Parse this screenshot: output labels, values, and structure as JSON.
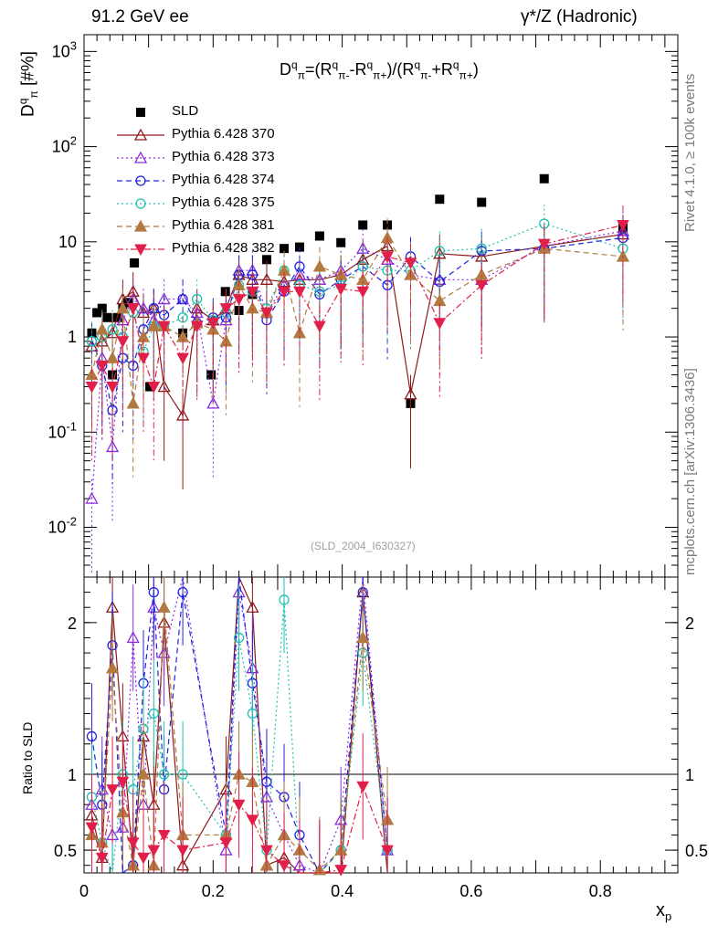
{
  "header": {
    "energy_label": "91.2 GeV ee",
    "process_label": "γ*/Z (Hadronic)",
    "side_label_top": "Rivet 4.1.0, ≥ 100k events",
    "side_label_bottom": "mcplots.cern.ch [arXiv:1306.3436]",
    "watermark": "(SLD_2004_I630327)"
  },
  "chart_data": [
    {
      "type": "scatter",
      "panel": "main",
      "title": "D^q_π = (R^q_π- − R^q_π+)/(R^q_π- + R^q_π+)",
      "ylabel": "D^q_π [#%]",
      "xlabel": "x_p",
      "yscale": "log",
      "ylim": [
        0.003,
        1500
      ],
      "xlim": [
        0,
        0.92
      ],
      "x_ticks": [
        "0",
        "0.2",
        "0.4",
        "0.6",
        "0.8"
      ],
      "y_ticks": [
        "10^-2",
        "10^-1",
        "1",
        "10",
        "10^2",
        "10^3"
      ],
      "legend_position": "top-left",
      "series": [
        {
          "name": "SLD",
          "color": "#000000",
          "marker": "square",
          "line": "none",
          "x": [
            0.012,
            0.02,
            0.028,
            0.036,
            0.044,
            0.052,
            0.06,
            0.068,
            0.078,
            0.102,
            0.153,
            0.197,
            0.219,
            0.24,
            0.261,
            0.283,
            0.31,
            0.334,
            0.365,
            0.398,
            0.432,
            0.47,
            0.506,
            0.551,
            0.616,
            0.713,
            0.835
          ],
          "values": [
            1.1,
            1.8,
            2.0,
            1.6,
            0.4,
            1.6,
            2.0,
            2.3,
            6.0,
            0.3,
            1.1,
            0.4,
            3.0,
            1.9,
            2.8,
            6.5,
            8.5,
            8.8,
            11.5,
            9.8,
            15.0,
            15.0,
            0.2,
            28.0,
            26.0,
            46.0,
            14.0
          ]
        },
        {
          "name": "Pythia 6.428 370",
          "color": "#8b1a1a",
          "marker": "triangle-open",
          "line": "solid",
          "x": [
            0.012,
            0.028,
            0.044,
            0.06,
            0.076,
            0.092,
            0.108,
            0.124,
            0.153,
            0.175,
            0.2,
            0.22,
            0.24,
            0.261,
            0.283,
            0.31,
            0.334,
            0.365,
            0.398,
            0.432,
            0.47,
            0.506,
            0.551,
            0.616,
            0.713,
            0.835
          ],
          "values": [
            0.8,
            0.9,
            1.1,
            2.5,
            3.0,
            1.8,
            2.0,
            0.3,
            0.15,
            2.0,
            1.5,
            2.0,
            4.5,
            4.0,
            4.0,
            3.8,
            4.0,
            4.0,
            4.5,
            6.5,
            9.0,
            0.25,
            7.5,
            7.0,
            9.0,
            12.0
          ]
        },
        {
          "name": "Pythia 6.428 373",
          "color": "#8a2be2",
          "marker": "triangle-open",
          "line": "dotted",
          "x": [
            0.012,
            0.028,
            0.044,
            0.06,
            0.076,
            0.092,
            0.108,
            0.124,
            0.153,
            0.175,
            0.2,
            0.22,
            0.24,
            0.261,
            0.283,
            0.31,
            0.334,
            0.365,
            0.398,
            0.432,
            0.47,
            0.506,
            0.551,
            0.616,
            0.713,
            0.835
          ],
          "values": [
            0.02,
            0.6,
            0.07,
            1.5,
            2.5,
            2.0,
            1.5,
            2.5,
            2.5,
            1.8,
            0.2,
            1.5,
            5.0,
            5.0,
            1.8,
            3.5,
            4.5,
            4.0,
            5.0,
            8.5,
            6.5,
            4.5,
            4.0,
            4.0,
            9.0,
            13.0
          ]
        },
        {
          "name": "Pythia 6.428 374",
          "color": "#2222dd",
          "marker": "circle-open",
          "line": "dashed",
          "x": [
            0.012,
            0.028,
            0.044,
            0.06,
            0.076,
            0.092,
            0.108,
            0.124,
            0.153,
            0.175,
            0.2,
            0.22,
            0.24,
            0.261,
            0.283,
            0.31,
            0.334,
            0.365,
            0.398,
            0.432,
            0.47,
            0.506,
            0.551,
            0.616,
            0.713,
            0.835
          ],
          "values": [
            0.9,
            0.5,
            0.17,
            0.6,
            0.5,
            1.2,
            2.0,
            1.7,
            2.5,
            1.4,
            1.6,
            1.6,
            4.5,
            4.5,
            1.5,
            3.0,
            5.5,
            2.8,
            4.0,
            5.5,
            3.5,
            7.0,
            3.8,
            8.0,
            8.5,
            11.0
          ]
        },
        {
          "name": "Pythia 6.428 375",
          "color": "#20c0b0",
          "marker": "circle-open",
          "line": "dotted",
          "x": [
            0.012,
            0.028,
            0.044,
            0.06,
            0.076,
            0.092,
            0.108,
            0.124,
            0.153,
            0.175,
            0.2,
            0.22,
            0.24,
            0.261,
            0.283,
            0.31,
            0.334,
            0.365,
            0.398,
            0.432,
            0.47,
            0.506,
            0.551,
            0.616,
            0.713,
            0.835
          ],
          "values": [
            0.9,
            1.0,
            1.2,
            1.0,
            1.8,
            0.7,
            1.3,
            1.3,
            1.6,
            2.5,
            1.5,
            1.8,
            3.5,
            3.0,
            2.0,
            5.0,
            3.5,
            3.0,
            3.5,
            5.5,
            5.0,
            5.0,
            8.0,
            8.5,
            15.5,
            8.5
          ]
        },
        {
          "name": "Pythia 6.428 381",
          "color": "#b07a40",
          "marker": "triangle-filled",
          "line": "dashed",
          "x": [
            0.012,
            0.028,
            0.044,
            0.06,
            0.076,
            0.092,
            0.108,
            0.124,
            0.153,
            0.175,
            0.2,
            0.22,
            0.24,
            0.261,
            0.283,
            0.31,
            0.334,
            0.365,
            0.398,
            0.432,
            0.47,
            0.506,
            0.551,
            0.616,
            0.713,
            0.835
          ],
          "values": [
            0.4,
            1.2,
            0.6,
            2.0,
            0.2,
            1.0,
            1.3,
            1.3,
            1.0,
            1.4,
            1.2,
            0.9,
            3.5,
            2.0,
            1.8,
            5.0,
            1.1,
            5.5,
            4.5,
            4.0,
            11.0,
            4.5,
            2.4,
            4.5,
            8.5,
            7.0
          ]
        },
        {
          "name": "Pythia 6.428 382",
          "color": "#e0204a",
          "marker": "triangle-down-filled",
          "line": "dashdot",
          "x": [
            0.012,
            0.028,
            0.044,
            0.06,
            0.076,
            0.092,
            0.108,
            0.124,
            0.153,
            0.175,
            0.2,
            0.22,
            0.24,
            0.261,
            0.283,
            0.31,
            0.334,
            0.365,
            0.398,
            0.432,
            0.47,
            0.506,
            0.551,
            0.616,
            0.713,
            0.835
          ],
          "values": [
            0.3,
            0.5,
            0.3,
            0.9,
            2.0,
            0.6,
            0.3,
            1.3,
            0.6,
            1.3,
            1.4,
            2.0,
            2.5,
            3.0,
            1.8,
            3.0,
            3.0,
            1.3,
            3.2,
            3.0,
            7.0,
            6.0,
            1.4,
            3.5,
            9.5,
            15.0
          ]
        }
      ]
    },
    {
      "type": "line",
      "panel": "ratio",
      "ylabel": "Ratio to SLD",
      "xlabel": "x_p",
      "ylim": [
        0.35,
        2.3
      ],
      "xlim": [
        0,
        0.92
      ],
      "y_ticks": [
        "0.5",
        "1",
        "2"
      ],
      "reference_line": 1,
      "series": [
        {
          "name": "Pythia 6.428 370",
          "x": [
            0.012,
            0.028,
            0.044,
            0.06,
            0.076,
            0.092,
            0.108,
            0.124,
            0.153,
            0.22,
            0.24,
            0.261,
            0.283,
            0.31,
            0.334,
            0.365,
            0.398,
            0.432,
            0.47
          ],
          "values": [
            0.73,
            0.45,
            2.1,
            1.25,
            0.4,
            1.25,
            0.8,
            2.0,
            0.4,
            0.9,
            2.4,
            2.1,
            0.4,
            0.45,
            0.3,
            0.3,
            0.3,
            2.2,
            0.3
          ]
        },
        {
          "name": "Pythia 6.428 373",
          "x": [
            0.012,
            0.028,
            0.044,
            0.06,
            0.076,
            0.092,
            0.108,
            0.124,
            0.153,
            0.22,
            0.24,
            0.261,
            0.283,
            0.31,
            0.334,
            0.365,
            0.398,
            0.432,
            0.47
          ],
          "values": [
            0.8,
            0.9,
            0.6,
            0.65,
            1.9,
            0.8,
            2.1,
            1.8,
            2.6,
            0.5,
            2.2,
            1.7,
            0.85,
            0.6,
            0.4,
            0.3,
            0.7,
            2.3,
            0.5
          ]
        },
        {
          "name": "Pythia 6.428 374",
          "x": [
            0.012,
            0.028,
            0.044,
            0.06,
            0.076,
            0.092,
            0.108,
            0.124,
            0.153,
            0.22,
            0.24,
            0.261,
            0.283,
            0.31,
            0.334,
            0.365,
            0.398,
            0.432,
            0.47
          ],
          "values": [
            1.25,
            0.8,
            1.85,
            0.35,
            0.4,
            1.6,
            2.2,
            0.9,
            2.2,
            0.6,
            2.3,
            1.6,
            0.95,
            0.85,
            0.6,
            0.35,
            0.5,
            2.2,
            0.5
          ]
        },
        {
          "name": "Pythia 6.428 375",
          "x": [
            0.012,
            0.028,
            0.044,
            0.06,
            0.076,
            0.092,
            0.108,
            0.124,
            0.153,
            0.22,
            0.24,
            0.261,
            0.283,
            0.31,
            0.334,
            0.365,
            0.398,
            0.432,
            0.47
          ],
          "values": [
            0.85,
            0.55,
            0.35,
            1.0,
            0.9,
            1.3,
            1.4,
            1.0,
            1.0,
            0.6,
            1.9,
            1.4,
            0.5,
            2.15,
            0.35,
            0.35,
            0.5,
            1.8,
            0.5
          ]
        },
        {
          "name": "Pythia 6.428 381",
          "x": [
            0.012,
            0.028,
            0.044,
            0.06,
            0.076,
            0.092,
            0.108,
            0.124,
            0.153,
            0.22,
            0.24,
            0.261,
            0.283,
            0.31,
            0.334,
            0.365,
            0.398,
            0.432,
            0.47
          ],
          "values": [
            0.6,
            0.55,
            1.7,
            0.75,
            0.4,
            1.0,
            0.4,
            2.1,
            0.6,
            0.6,
            1.0,
            0.95,
            0.4,
            0.6,
            0.5,
            0.37,
            0.5,
            1.9,
            0.7
          ]
        },
        {
          "name": "Pythia 6.428 382",
          "x": [
            0.012,
            0.028,
            0.044,
            0.06,
            0.076,
            0.092,
            0.108,
            0.124,
            0.153,
            0.22,
            0.24,
            0.261,
            0.283,
            0.31,
            0.334,
            0.365,
            0.398,
            0.432,
            0.47
          ],
          "values": [
            0.65,
            0.45,
            0.9,
            0.95,
            0.55,
            0.45,
            0.5,
            0.6,
            0.5,
            0.55,
            0.8,
            0.7,
            0.5,
            0.4,
            0.35,
            0.35,
            0.37,
            0.92,
            0.5
          ]
        }
      ]
    }
  ]
}
